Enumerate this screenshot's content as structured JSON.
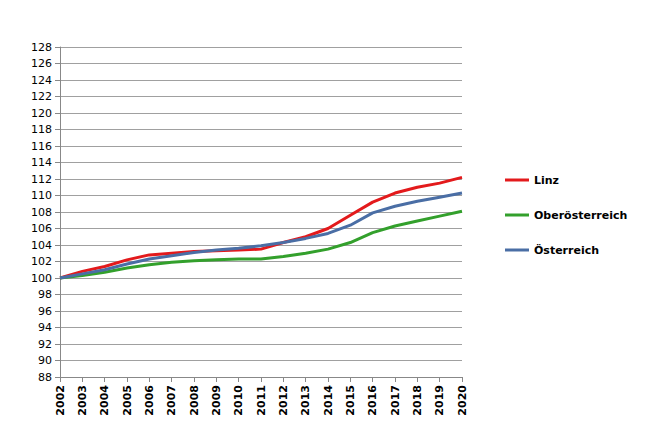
{
  "chart_data": {
    "type": "line",
    "categories": [
      "2002",
      "2003",
      "2004",
      "2005",
      "2006",
      "2007",
      "2008",
      "2009",
      "2010",
      "2011",
      "2012",
      "2013",
      "2014",
      "2015",
      "2016",
      "2017",
      "2018",
      "2019",
      "2020"
    ],
    "series": [
      {
        "name": "Linz",
        "color": "#e31a1c",
        "values": [
          100,
          100.8,
          101.4,
          102.2,
          102.8,
          103.0,
          103.2,
          103.3,
          103.4,
          103.5,
          104.3,
          105.0,
          106.0,
          107.6,
          109.2,
          110.3,
          111.0,
          111.5,
          112.2
        ]
      },
      {
        "name": "Oberösterreich",
        "color": "#33a02c",
        "values": [
          100,
          100.3,
          100.7,
          101.2,
          101.6,
          101.9,
          102.1,
          102.2,
          102.3,
          102.3,
          102.6,
          103.0,
          103.5,
          104.3,
          105.5,
          106.3,
          106.9,
          107.5,
          108.1
        ]
      },
      {
        "name": "Österreich",
        "color": "#4a6ea5",
        "values": [
          100,
          100.5,
          101.0,
          101.7,
          102.3,
          102.7,
          103.1,
          103.4,
          103.6,
          103.9,
          104.3,
          104.8,
          105.4,
          106.4,
          107.9,
          108.7,
          109.3,
          109.8,
          110.3
        ]
      }
    ],
    "ylim": [
      88,
      128
    ],
    "yticks": [
      88,
      90,
      92,
      94,
      96,
      98,
      100,
      102,
      104,
      106,
      108,
      110,
      112,
      114,
      116,
      118,
      120,
      122,
      124,
      126,
      128
    ],
    "grid": true,
    "legend": "right"
  }
}
